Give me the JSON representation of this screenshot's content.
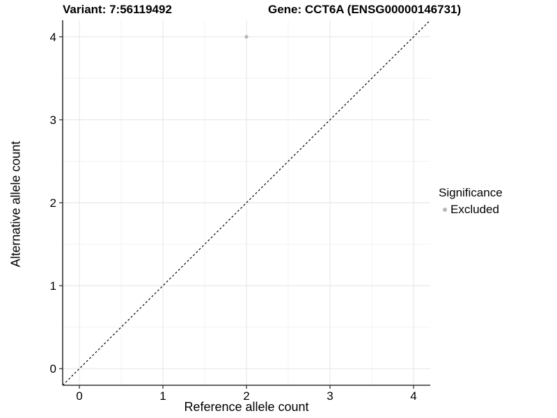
{
  "chart_data": {
    "type": "scatter",
    "title": {
      "variant": "Variant: 7:56119492",
      "gene": "Gene: CCT6A (ENSG00000146731)"
    },
    "xlabel": "Reference allele count",
    "ylabel": "Alternative allele count",
    "xlim": [
      -0.2,
      4.2
    ],
    "ylim": [
      -0.2,
      4.2
    ],
    "x_ticks": [
      0,
      1,
      2,
      3,
      4
    ],
    "y_ticks": [
      0,
      1,
      2,
      3,
      4
    ],
    "x_minor_ticks": [
      0.5,
      1.5,
      2.5,
      3.5
    ],
    "y_minor_ticks": [
      0.5,
      1.5,
      2.5,
      3.5
    ],
    "grid": "on",
    "series": [
      {
        "name": "Excluded",
        "color": "#b6b6b6",
        "point_radius": 2.6,
        "points": [
          {
            "x": 2,
            "y": 4
          }
        ]
      }
    ],
    "reference_line": {
      "type": "identity",
      "style": "dashed",
      "color": "#000000",
      "from": [
        -0.2,
        -0.2
      ],
      "to": [
        4.2,
        4.2
      ]
    },
    "legend": {
      "title": "Significance",
      "position": "right",
      "items": [
        {
          "label": "Excluded",
          "color": "#b6b6b6"
        }
      ]
    },
    "colors": {
      "background": "#ffffff",
      "axis_line": "#333333",
      "grid_major": "#e8e8e8",
      "grid_minor": "#f3f3f3",
      "text": "#000000"
    }
  }
}
